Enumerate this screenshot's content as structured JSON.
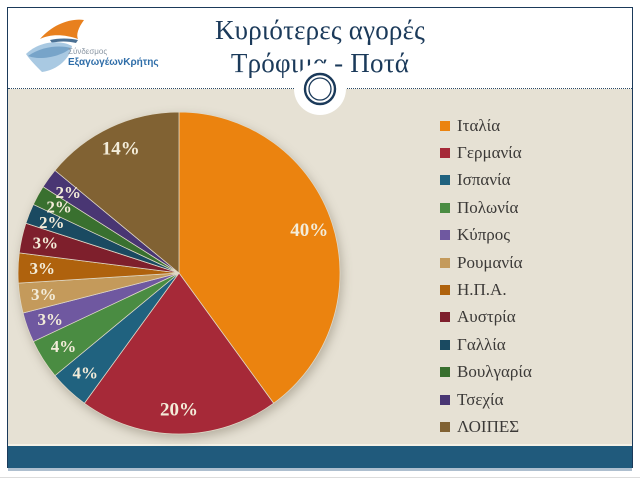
{
  "header": {
    "title_line1": "Κυριότερες αγορές",
    "title_line2": "Τρόφιμα - Ποτά",
    "logo": {
      "line1": "Σύνδεσμος",
      "line2": "ΕξαγωγέωνΚρήτης"
    }
  },
  "chart_data": {
    "type": "pie",
    "title": "Κυριότερες αγορές Τρόφιμα - Ποτά",
    "start_angle_deg": 0,
    "direction": "clockwise",
    "legend_position": "right",
    "data_labels": "percent",
    "slices": [
      {
        "label": "Ιταλία",
        "value": 40,
        "color": "#EB830F"
      },
      {
        "label": "Γερμανία",
        "value": 20,
        "color": "#A62938"
      },
      {
        "label": "Ισπανία",
        "value": 4,
        "color": "#20627F"
      },
      {
        "label": "Πολωνία",
        "value": 4,
        "color": "#4A8C42"
      },
      {
        "label": "Κύπρος",
        "value": 3,
        "color": "#6F58A0"
      },
      {
        "label": "Ρουμανία",
        "value": 3,
        "color": "#C49A5B"
      },
      {
        "label": "Η.Π.Α.",
        "value": 3,
        "color": "#AF620D"
      },
      {
        "label": "Αυστρία",
        "value": 3,
        "color": "#7E1F2C"
      },
      {
        "label": "Γαλλία",
        "value": 2,
        "color": "#1A4A61"
      },
      {
        "label": "Βουλγαρία",
        "value": 2,
        "color": "#39702F"
      },
      {
        "label": "Τσεχία",
        "value": 2,
        "color": "#493673"
      },
      {
        "label": "ΛΟΙΠΕΣ",
        "value": 14,
        "color": "#816233"
      }
    ]
  },
  "colors": {
    "content_bg": "#E6E1D4",
    "bottom_band": "#205A7C",
    "slide_border": "#1B3A5A",
    "title_text": "#1B3A5A",
    "legend_text": "#3C3A38",
    "slice_label_text": "#F3ECD9"
  }
}
